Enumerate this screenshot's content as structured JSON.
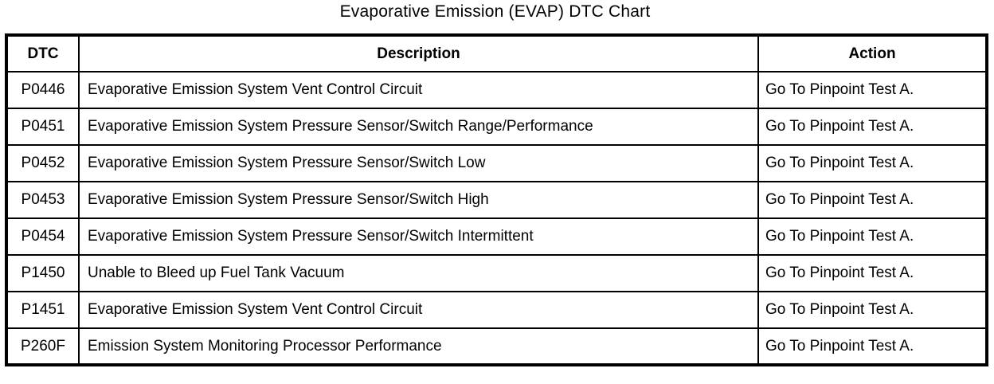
{
  "title": "Evaporative Emission (EVAP) DTC Chart",
  "colors": {
    "border": "#000000",
    "background": "#ffffff",
    "text": "#000000"
  },
  "table": {
    "headers": {
      "dtc": "DTC",
      "description": "Description",
      "action": "Action"
    },
    "rows": [
      {
        "dtc": "P0446",
        "description": "Evaporative Emission System Vent Control Circuit",
        "action": "Go To Pinpoint Test A."
      },
      {
        "dtc": "P0451",
        "description": "Evaporative Emission System Pressure Sensor/Switch Range/Performance",
        "action": "Go To Pinpoint Test A."
      },
      {
        "dtc": "P0452",
        "description": "Evaporative Emission System Pressure Sensor/Switch Low",
        "action": "Go To Pinpoint Test A."
      },
      {
        "dtc": "P0453",
        "description": "Evaporative Emission System Pressure Sensor/Switch High",
        "action": "Go To Pinpoint Test A."
      },
      {
        "dtc": "P0454",
        "description": "Evaporative Emission System Pressure Sensor/Switch Intermittent",
        "action": "Go To Pinpoint Test A."
      },
      {
        "dtc": "P1450",
        "description": "Unable to Bleed up Fuel Tank Vacuum",
        "action": "Go To Pinpoint Test A."
      },
      {
        "dtc": "P1451",
        "description": "Evaporative Emission System Vent Control Circuit",
        "action": "Go To Pinpoint Test A."
      },
      {
        "dtc": "P260F",
        "description": "Emission System Monitoring Processor Performance",
        "action": "Go To Pinpoint Test A."
      }
    ]
  }
}
